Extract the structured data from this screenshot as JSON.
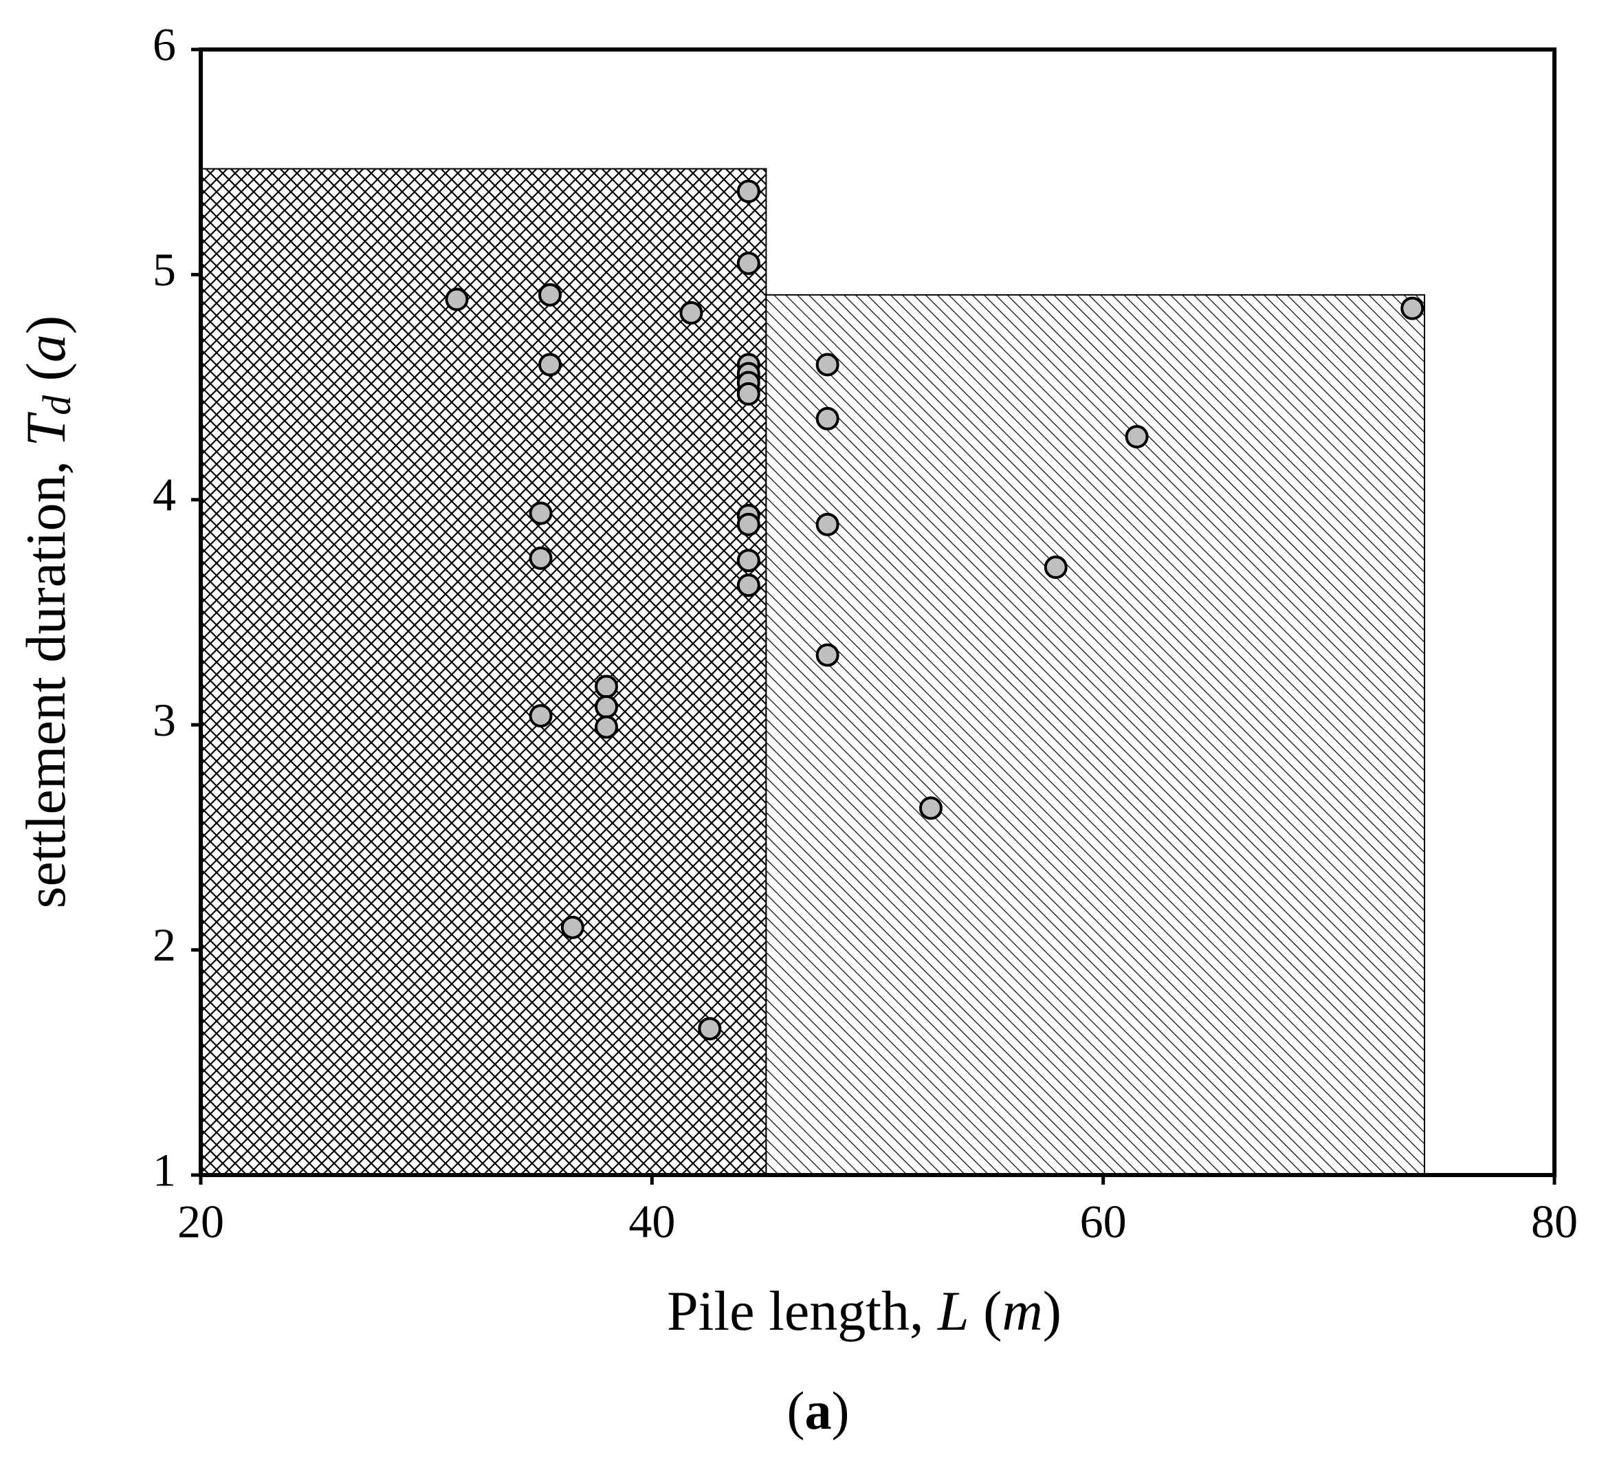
{
  "chart_data": {
    "type": "scatter",
    "xlabel": [
      "Pile length, ",
      "L",
      " (",
      "m",
      ")"
    ],
    "ylabel": [
      "settlement duration, ",
      "T",
      "d",
      " (",
      "a",
      ")"
    ],
    "caption": [
      "(",
      "a",
      ")"
    ],
    "xlim": [
      20,
      80
    ],
    "xticks": [
      20,
      40,
      60,
      80
    ],
    "ylim": [
      1,
      6
    ],
    "yticks": [
      1,
      2,
      3,
      4,
      5,
      6
    ],
    "regions": [
      {
        "pattern": "crosshatch",
        "xlim": [
          20,
          45.06
        ],
        "ylim": [
          1,
          5.47
        ]
      },
      {
        "pattern": "diagonal",
        "xlim": [
          45.06,
          74.24
        ],
        "ylim": [
          1,
          4.91
        ]
      }
    ],
    "color": "#bfbfbf",
    "x": [
      31.35,
      35.48,
      41.74,
      44.28,
      44.28,
      35.48,
      44.28,
      44.28,
      44.28,
      44.28,
      47.78,
      47.78,
      61.49,
      73.7,
      35.07,
      35.07,
      44.28,
      44.28,
      44.28,
      44.28,
      47.78,
      57.9,
      47.78,
      37.98,
      37.98,
      37.98,
      35.07,
      52.36,
      36.48,
      42.56
    ],
    "y": [
      4.89,
      4.91,
      4.83,
      5.37,
      5.05,
      4.6,
      4.6,
      4.56,
      4.52,
      4.47,
      4.6,
      4.36,
      4.28,
      4.85,
      3.94,
      3.74,
      3.93,
      3.89,
      3.73,
      3.62,
      3.89,
      3.7,
      3.31,
      3.17,
      3.08,
      2.99,
      3.04,
      2.63,
      2.1,
      1.65
    ]
  }
}
